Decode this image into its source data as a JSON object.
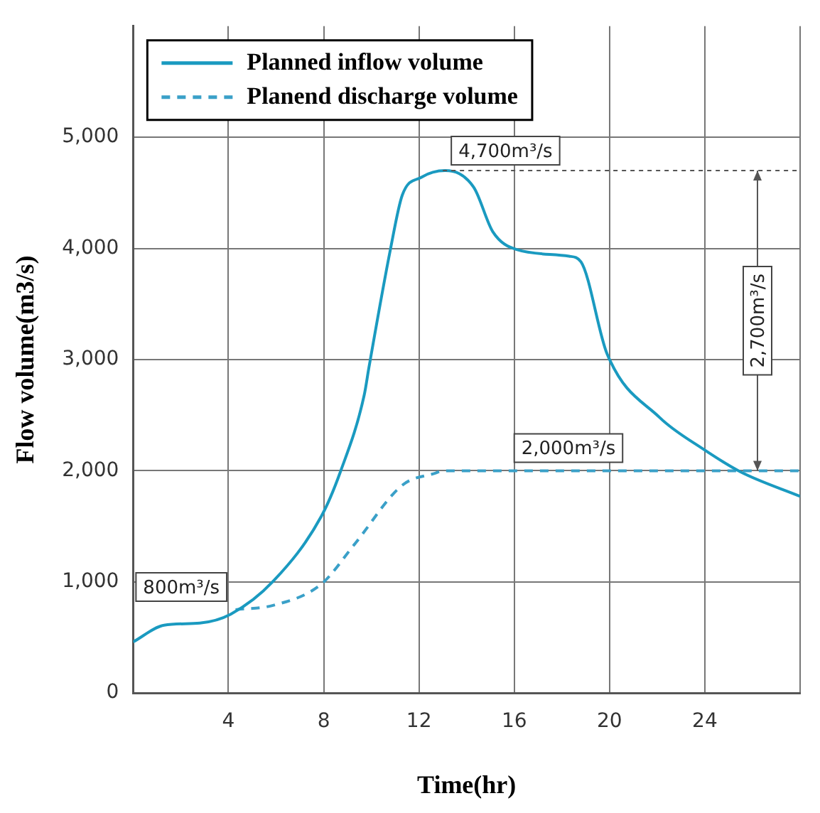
{
  "chart_data": {
    "type": "line",
    "xlabel": "Time(hr)",
    "ylabel": "Flow volume(m3/s)",
    "xlim": [
      0,
      28
    ],
    "xticks": [
      {
        "value": 0,
        "label": null
      },
      4,
      8,
      12,
      16,
      20,
      24,
      {
        "value": 28,
        "label": null
      }
    ],
    "ylim": [
      0,
      6000
    ],
    "yticks": [
      0,
      {
        "value": 1000,
        "label": "1,000"
      },
      {
        "value": 2000,
        "label": "2,000"
      },
      {
        "value": 3000,
        "label": "3,000"
      },
      {
        "value": 4000,
        "label": "4,000"
      },
      {
        "value": 5000,
        "label": "5,000"
      }
    ],
    "grid": true,
    "legend": "top left",
    "marker": "none",
    "series": [
      {
        "name": "Planned inflow volume",
        "color": "#1a9ac0",
        "line_style": "solid",
        "x": [
          0,
          1.3,
          2.8,
          4.1,
          5.9,
          7.9,
          8.7,
          9.7,
          9.9,
          10.8,
          11.3,
          12.1,
          13.1,
          14.3,
          15.1,
          16.1,
          18.3,
          18.8,
          19.9,
          22.1,
          23.9,
          25.5,
          28
        ],
        "values": [
          460,
          610,
          630,
          710,
          1010,
          1590,
          1990,
          2680,
          2930,
          3990,
          4480,
          4640,
          4700,
          4550,
          4150,
          3990,
          3930,
          3880,
          3050,
          2480,
          2200,
          1990,
          1770
        ]
      },
      {
        "name": "Planend discharge volume",
        "color": "#3aa0c8",
        "line_style": "dashed",
        "x": [
          4.3,
          5.9,
          7.9,
          9.3,
          11.3,
          12.7,
          13,
          28
        ],
        "values": [
          750,
          790,
          980,
          1340,
          1870,
          1980,
          2000,
          2000
        ]
      }
    ],
    "annotations": [
      {
        "text": "4,700m³/s",
        "x": 13,
        "y": 4700
      },
      {
        "text": "2,000m³/s",
        "x": 16,
        "y": 2000
      },
      "800m³/s",
      "2,700m³/s"
    ]
  }
}
